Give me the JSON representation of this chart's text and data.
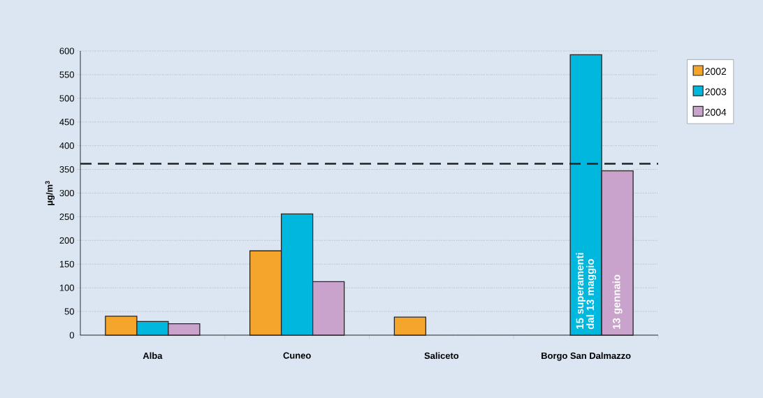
{
  "chart_data": {
    "type": "bar",
    "ylabel": "µg/m$^{3}$",
    "categories": [
      "Alba",
      "Cuneo",
      "Saliceto",
      "Borgo San Dalmazzo"
    ],
    "series": [
      {
        "name": "2002",
        "color": "#f5a52c",
        "values": [
          40,
          178,
          38,
          null
        ]
      },
      {
        "name": "2003",
        "color": "#00b8de",
        "values": [
          29,
          256,
          null,
          592
        ]
      },
      {
        "name": "2004",
        "color": "#c9a3cc",
        "values": [
          24,
          113,
          null,
          347
        ]
      }
    ],
    "ylim": [
      0,
      600
    ],
    "yticks": [
      0,
      50,
      100,
      150,
      200,
      250,
      300,
      350,
      400,
      450,
      500,
      550,
      600
    ],
    "grid": "y",
    "legend": "top right",
    "ref_lines": [
      {
        "axis": "y",
        "value": 362,
        "color": "#222222",
        "line_style": "dashed"
      }
    ],
    "annotations": [
      "15 superamenti dal 13 maggio",
      "13 gennaio"
    ]
  }
}
